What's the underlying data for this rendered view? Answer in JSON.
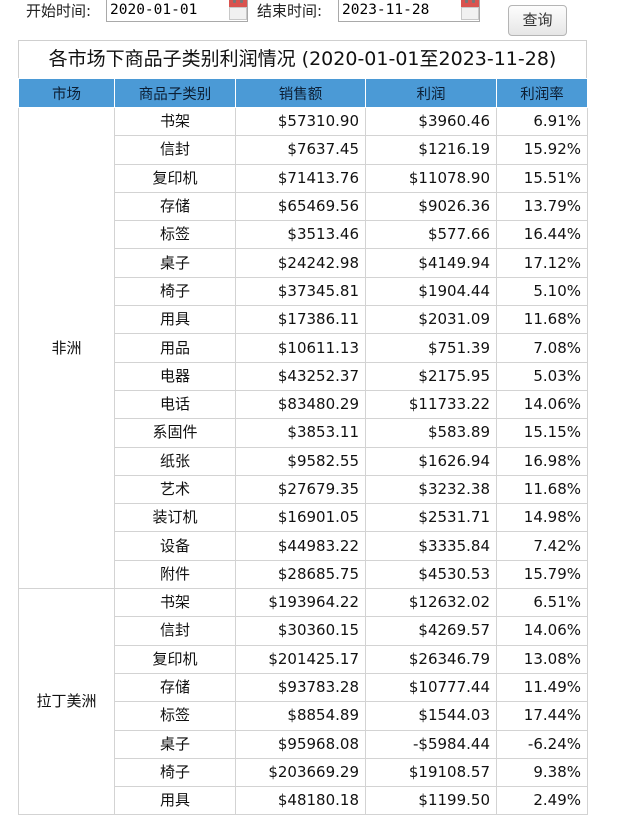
{
  "filters": {
    "start_label": "开始时间:",
    "start_value": "2020-01-01",
    "end_label": "结束时间:",
    "end_value": "2023-11-28",
    "query_button": "查询"
  },
  "report": {
    "title": "各市场下商品子类别利润情况  (2020-01-01至2023-11-28)",
    "headers": [
      "市场",
      "商品子类别",
      "销售额",
      "利润",
      "利润率"
    ],
    "groups": [
      {
        "market": "非洲",
        "rows": [
          {
            "category": "书架",
            "sales": "$57310.90",
            "profit": "$3960.46",
            "rate": "6.91%"
          },
          {
            "category": "信封",
            "sales": "$7637.45",
            "profit": "$1216.19",
            "rate": "15.92%"
          },
          {
            "category": "复印机",
            "sales": "$71413.76",
            "profit": "$11078.90",
            "rate": "15.51%"
          },
          {
            "category": "存储",
            "sales": "$65469.56",
            "profit": "$9026.36",
            "rate": "13.79%"
          },
          {
            "category": "标签",
            "sales": "$3513.46",
            "profit": "$577.66",
            "rate": "16.44%"
          },
          {
            "category": "桌子",
            "sales": "$24242.98",
            "profit": "$4149.94",
            "rate": "17.12%"
          },
          {
            "category": "椅子",
            "sales": "$37345.81",
            "profit": "$1904.44",
            "rate": "5.10%"
          },
          {
            "category": "用具",
            "sales": "$17386.11",
            "profit": "$2031.09",
            "rate": "11.68%"
          },
          {
            "category": "用品",
            "sales": "$10611.13",
            "profit": "$751.39",
            "rate": "7.08%"
          },
          {
            "category": "电器",
            "sales": "$43252.37",
            "profit": "$2175.95",
            "rate": "5.03%"
          },
          {
            "category": "电话",
            "sales": "$83480.29",
            "profit": "$11733.22",
            "rate": "14.06%"
          },
          {
            "category": "系固件",
            "sales": "$3853.11",
            "profit": "$583.89",
            "rate": "15.15%"
          },
          {
            "category": "纸张",
            "sales": "$9582.55",
            "profit": "$1626.94",
            "rate": "16.98%"
          },
          {
            "category": "艺术",
            "sales": "$27679.35",
            "profit": "$3232.38",
            "rate": "11.68%"
          },
          {
            "category": "装订机",
            "sales": "$16901.05",
            "profit": "$2531.71",
            "rate": "14.98%"
          },
          {
            "category": "设备",
            "sales": "$44983.22",
            "profit": "$3335.84",
            "rate": "7.42%"
          },
          {
            "category": "附件",
            "sales": "$28685.75",
            "profit": "$4530.53",
            "rate": "15.79%"
          }
        ]
      },
      {
        "market": "拉丁美洲",
        "rows": [
          {
            "category": "书架",
            "sales": "$193964.22",
            "profit": "$12632.02",
            "rate": "6.51%"
          },
          {
            "category": "信封",
            "sales": "$30360.15",
            "profit": "$4269.57",
            "rate": "14.06%"
          },
          {
            "category": "复印机",
            "sales": "$201425.17",
            "profit": "$26346.79",
            "rate": "13.08%"
          },
          {
            "category": "存储",
            "sales": "$93783.28",
            "profit": "$10777.44",
            "rate": "11.49%"
          },
          {
            "category": "标签",
            "sales": "$8854.89",
            "profit": "$1544.03",
            "rate": "17.44%"
          },
          {
            "category": "桌子",
            "sales": "$95968.08",
            "profit": "-$5984.44",
            "rate": "-6.24%"
          },
          {
            "category": "椅子",
            "sales": "$203669.29",
            "profit": "$19108.57",
            "rate": "9.38%"
          },
          {
            "category": "用具",
            "sales": "$48180.18",
            "profit": "$1199.50",
            "rate": "2.49%"
          }
        ]
      }
    ]
  }
}
